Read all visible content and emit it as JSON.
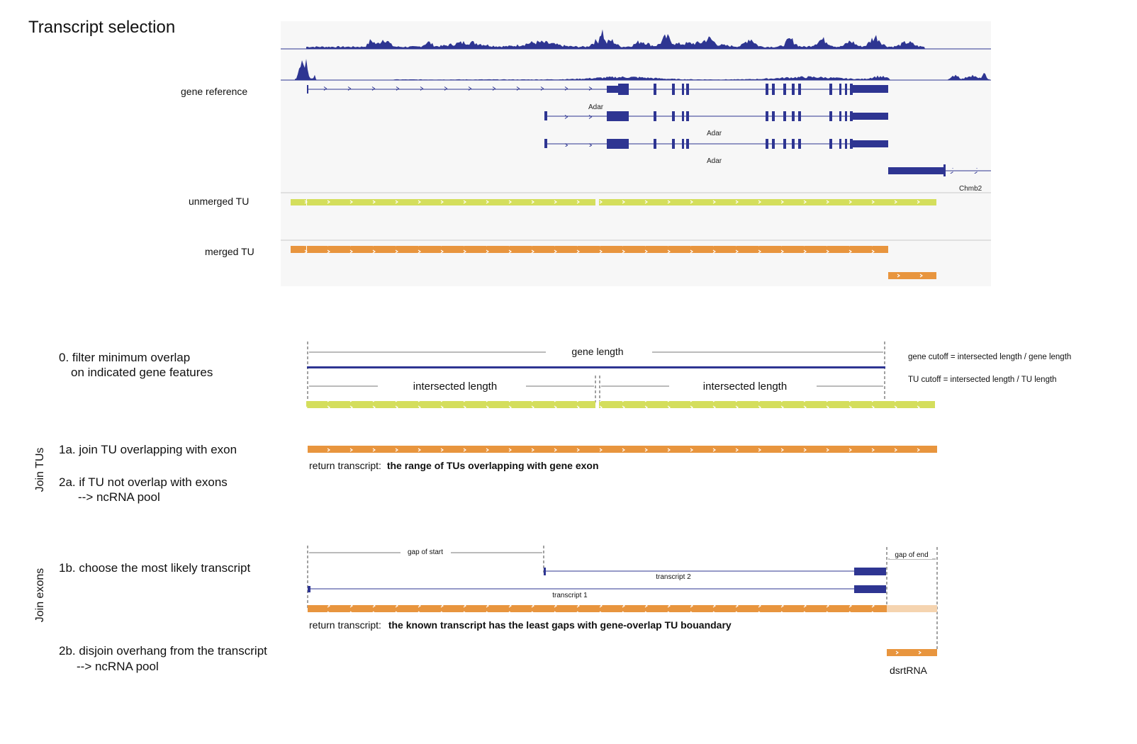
{
  "title": "Transcript selection",
  "colors": {
    "navy": "#2e3592",
    "coverage": "#2e3592",
    "tu_yellow": "#d4de5c",
    "tu_orange": "#e8953e",
    "overhang": "#f5d4b0",
    "panel_bg": "#f7f7f7",
    "divider": "#c8c8c8",
    "gray_line": "#777777"
  },
  "browser": {
    "track_labels": {
      "gene_reference": "gene reference",
      "unmerged_tu": "unmerged TU",
      "merged_tu": "merged TU"
    },
    "gene_names": [
      "Adar",
      "Adar",
      "Adar",
      "Chmb2"
    ]
  },
  "section0": {
    "title_line1": "0. filter minimum overlap",
    "title_line2": "on indicated gene features",
    "gene_length_label": "gene length",
    "intersected_label_1": "intersected length",
    "intersected_label_2": "intersected length",
    "gene_cutoff_formula": "gene cutoff = intersected length / gene length",
    "tu_cutoff_formula": "TU cutoff = intersected length / TU length"
  },
  "join_tus": {
    "side_label": "Join TUs",
    "step_1a": "1a. join TU overlapping with exon",
    "return_prefix": "return transcript:",
    "return_bold": "the range of TUs overlapping with gene exon",
    "step_2a_line1": "2a. if TU not overlap with exons",
    "step_2a_line2": "--> ncRNA pool"
  },
  "join_exons": {
    "side_label": "Join exons",
    "step_1b": "1b. choose the most likely transcript",
    "gap_start_label": "gap of start",
    "gap_end_label": "gap of end",
    "transcript2_label": "transcript 2",
    "transcript1_label": "transcript 1",
    "return_prefix": "return transcript:",
    "return_bold": "the known transcript has the least gaps with gene-overlap TU bouandary",
    "step_2b_line1": "2b. disjoin overhang from the transcript",
    "step_2b_line2": "--> ncRNA pool",
    "dsrtrna_label": "dsrtRNA"
  }
}
